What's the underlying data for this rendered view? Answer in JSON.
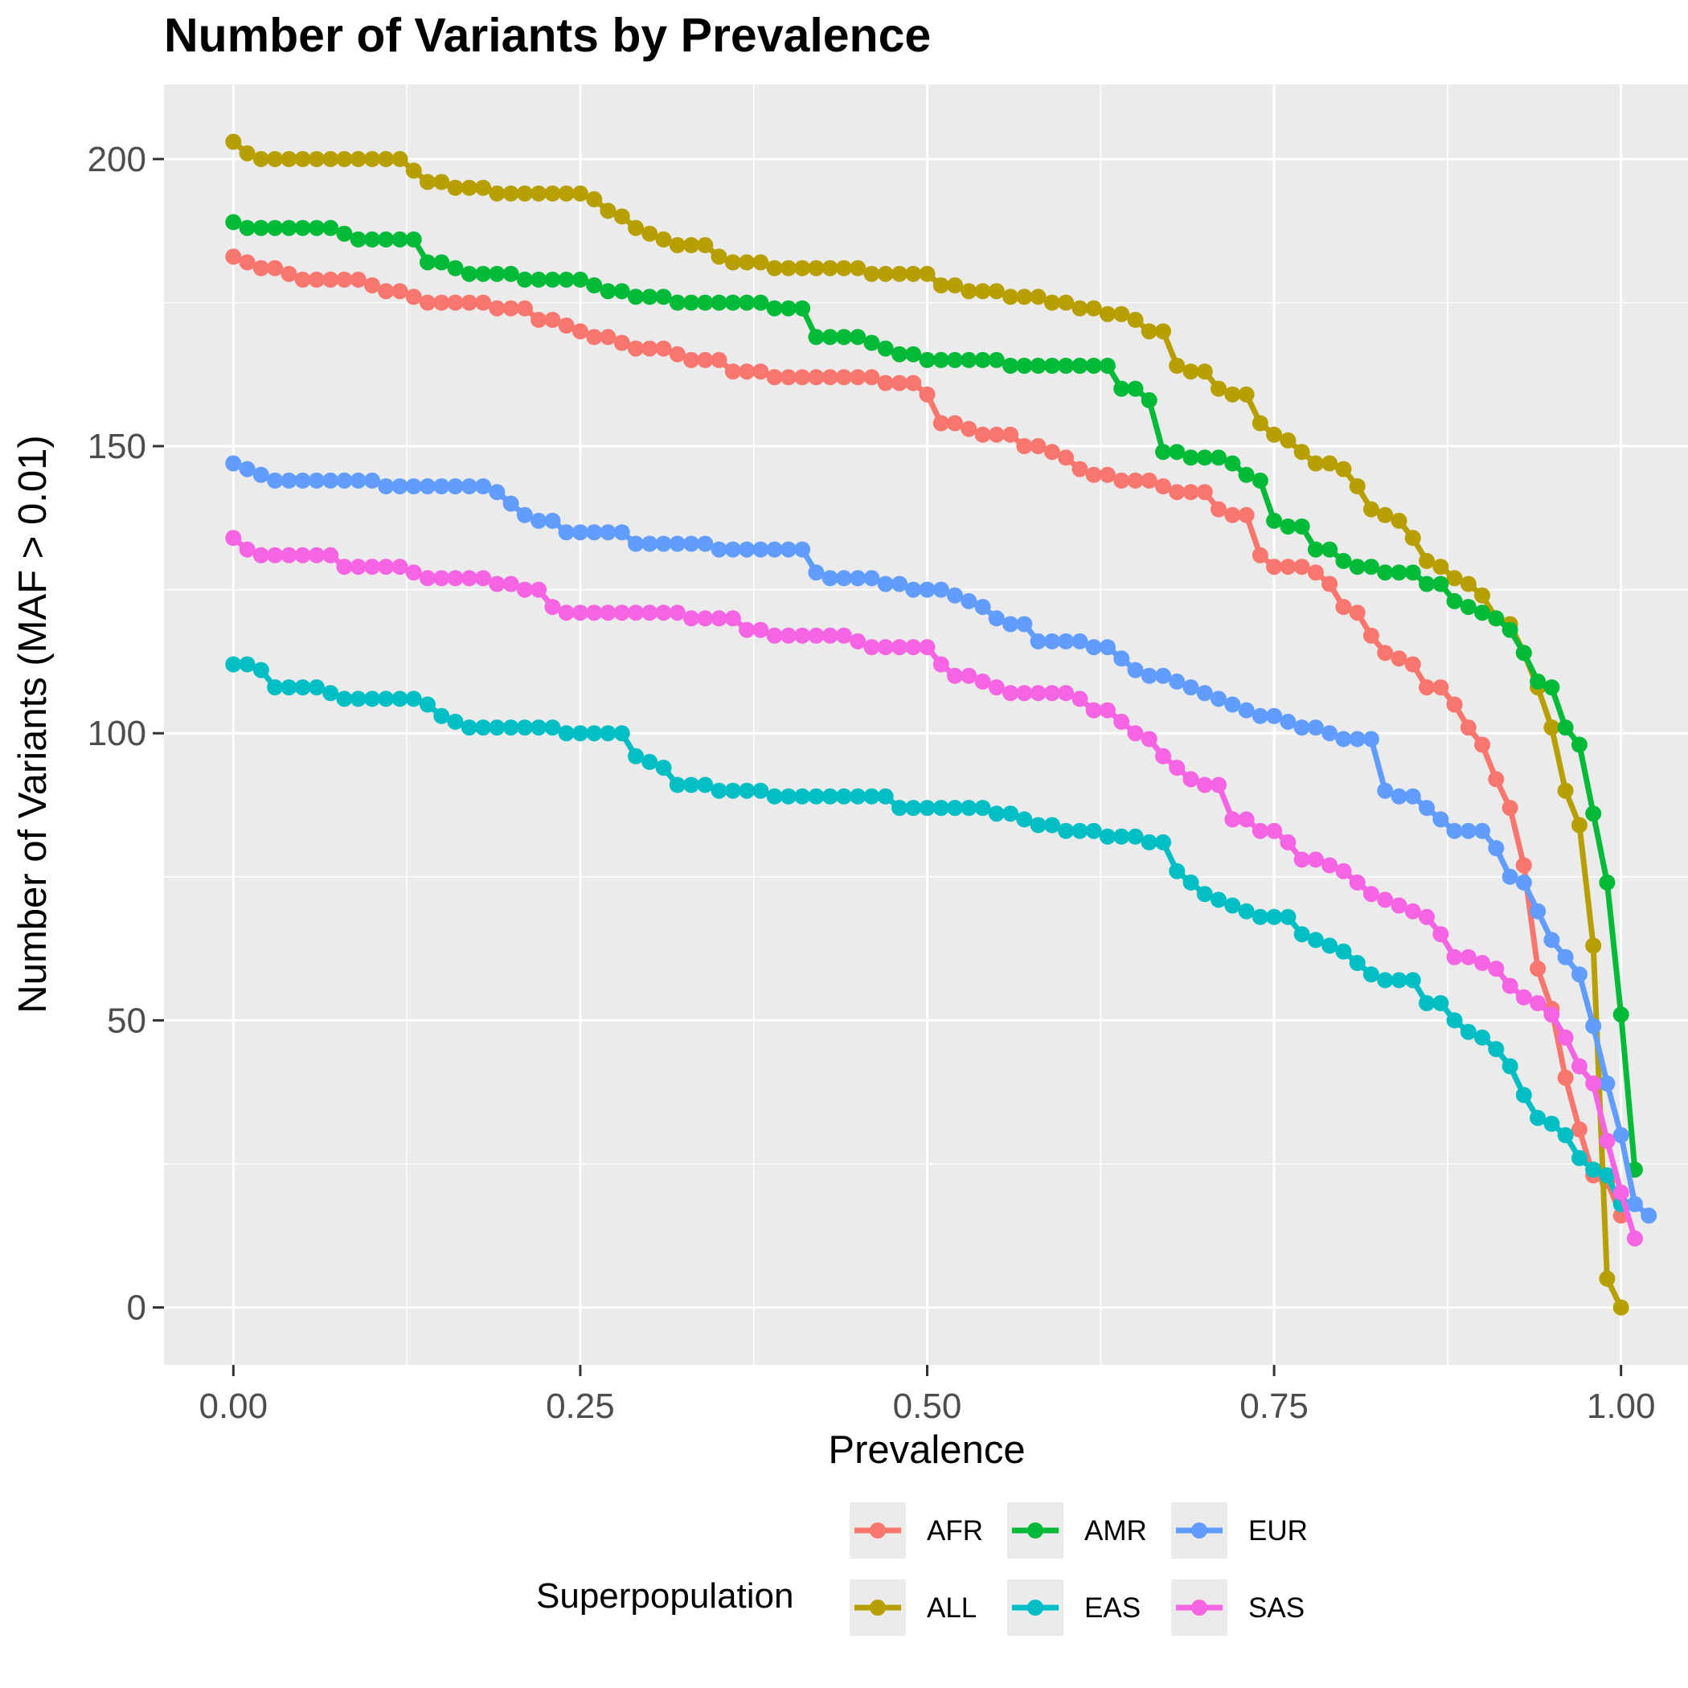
{
  "chart_data": {
    "type": "line",
    "title": "Number of Variants by Prevalence",
    "xlabel": "Prevalence",
    "ylabel": "Number of Variants (MAF > 0.01)",
    "xlim": [
      -0.05,
      1.05
    ],
    "ylim": [
      -10,
      213
    ],
    "x_ticks": [
      0,
      0.25,
      0.5,
      0.75,
      1
    ],
    "x_tick_labels": [
      "0.00",
      "0.25",
      "0.50",
      "0.75",
      "1.00"
    ],
    "y_ticks": [
      0,
      50,
      100,
      150,
      200
    ],
    "y_tick_labels": [
      "0",
      "50",
      "100",
      "150",
      "200"
    ],
    "grid": true,
    "panel_background": "#ebebeb",
    "markers": true,
    "x_step": 0.01,
    "legend": {
      "title": "Superpopulation",
      "position": "bottom",
      "entries": [
        "AFR",
        "ALL",
        "AMR",
        "EAS",
        "EUR",
        "SAS"
      ]
    },
    "series": [
      {
        "name": "AFR",
        "color": "#F8766D",
        "x_start": 0,
        "values": [
          183,
          182,
          181,
          181,
          180,
          179,
          179,
          179,
          179,
          179,
          178,
          177,
          177,
          176,
          175,
          175,
          175,
          175,
          175,
          174,
          174,
          174,
          172,
          172,
          171,
          170,
          169,
          169,
          168,
          167,
          167,
          167,
          166,
          165,
          165,
          165,
          163,
          163,
          163,
          162,
          162,
          162,
          162,
          162,
          162,
          162,
          162,
          161,
          161,
          161,
          159,
          154,
          154,
          153,
          152,
          152,
          152,
          150,
          150,
          149,
          148,
          146,
          145,
          145,
          144,
          144,
          144,
          143,
          142,
          142,
          142,
          139,
          138,
          138,
          131,
          129,
          129,
          129,
          128,
          126,
          122,
          121,
          117,
          114,
          113,
          112,
          108,
          108,
          105,
          101,
          98,
          92,
          87,
          77,
          59,
          52,
          40,
          31,
          23,
          22,
          16
        ]
      },
      {
        "name": "ALL",
        "color": "#B79F00",
        "x_start": 0,
        "values": [
          203,
          201,
          200,
          200,
          200,
          200,
          200,
          200,
          200,
          200,
          200,
          200,
          200,
          198,
          196,
          196,
          195,
          195,
          195,
          194,
          194,
          194,
          194,
          194,
          194,
          194,
          193,
          191,
          190,
          188,
          187,
          186,
          185,
          185,
          185,
          183,
          182,
          182,
          182,
          181,
          181,
          181,
          181,
          181,
          181,
          181,
          180,
          180,
          180,
          180,
          180,
          178,
          178,
          177,
          177,
          177,
          176,
          176,
          176,
          175,
          175,
          174,
          174,
          173,
          173,
          172,
          170,
          170,
          164,
          163,
          163,
          160,
          159,
          159,
          154,
          152,
          151,
          149,
          147,
          147,
          146,
          143,
          139,
          138,
          137,
          134,
          130,
          129,
          127,
          126,
          124,
          120,
          119,
          114,
          108,
          101,
          90,
          84,
          63,
          5,
          0
        ]
      },
      {
        "name": "AMR",
        "color": "#00BA38",
        "x_start": 0,
        "values": [
          189,
          188,
          188,
          188,
          188,
          188,
          188,
          188,
          187,
          186,
          186,
          186,
          186,
          186,
          182,
          182,
          181,
          180,
          180,
          180,
          180,
          179,
          179,
          179,
          179,
          179,
          178,
          177,
          177,
          176,
          176,
          176,
          175,
          175,
          175,
          175,
          175,
          175,
          175,
          174,
          174,
          174,
          169,
          169,
          169,
          169,
          168,
          167,
          166,
          166,
          165,
          165,
          165,
          165,
          165,
          165,
          164,
          164,
          164,
          164,
          164,
          164,
          164,
          164,
          160,
          160,
          158,
          149,
          149,
          148,
          148,
          148,
          147,
          145,
          144,
          137,
          136,
          136,
          132,
          132,
          130,
          129,
          129,
          128,
          128,
          128,
          126,
          126,
          123,
          122,
          121,
          120,
          118,
          114,
          109,
          108,
          101,
          98,
          86,
          74,
          51,
          24
        ]
      },
      {
        "name": "EAS",
        "color": "#00BFC4",
        "x_start": 0,
        "values": [
          112,
          112,
          111,
          108,
          108,
          108,
          108,
          107,
          106,
          106,
          106,
          106,
          106,
          106,
          105,
          103,
          102,
          101,
          101,
          101,
          101,
          101,
          101,
          101,
          100,
          100,
          100,
          100,
          100,
          96,
          95,
          94,
          91,
          91,
          91,
          90,
          90,
          90,
          90,
          89,
          89,
          89,
          89,
          89,
          89,
          89,
          89,
          89,
          87,
          87,
          87,
          87,
          87,
          87,
          87,
          86,
          86,
          85,
          84,
          84,
          83,
          83,
          83,
          82,
          82,
          82,
          81,
          81,
          76,
          74,
          72,
          71,
          70,
          69,
          68,
          68,
          68,
          65,
          64,
          63,
          62,
          60,
          58,
          57,
          57,
          57,
          53,
          53,
          50,
          48,
          47,
          45,
          42,
          37,
          33,
          32,
          30,
          26,
          24,
          23,
          18
        ]
      },
      {
        "name": "EUR",
        "color": "#619CFF",
        "x_start": 0,
        "values": [
          147,
          146,
          145,
          144,
          144,
          144,
          144,
          144,
          144,
          144,
          144,
          143,
          143,
          143,
          143,
          143,
          143,
          143,
          143,
          142,
          140,
          138,
          137,
          137,
          135,
          135,
          135,
          135,
          135,
          133,
          133,
          133,
          133,
          133,
          133,
          132,
          132,
          132,
          132,
          132,
          132,
          132,
          128,
          127,
          127,
          127,
          127,
          126,
          126,
          125,
          125,
          125,
          124,
          123,
          122,
          120,
          119,
          119,
          116,
          116,
          116,
          116,
          115,
          115,
          113,
          111,
          110,
          110,
          109,
          108,
          107,
          106,
          105,
          104,
          103,
          103,
          102,
          101,
          101,
          100,
          99,
          99,
          99,
          90,
          89,
          89,
          87,
          85,
          83,
          83,
          83,
          80,
          75,
          74,
          69,
          64,
          61,
          58,
          49,
          39,
          30,
          18,
          16
        ]
      },
      {
        "name": "SAS",
        "color": "#F564E3",
        "x_start": 0,
        "values": [
          134,
          132,
          131,
          131,
          131,
          131,
          131,
          131,
          129,
          129,
          129,
          129,
          129,
          128,
          127,
          127,
          127,
          127,
          127,
          126,
          126,
          125,
          125,
          122,
          121,
          121,
          121,
          121,
          121,
          121,
          121,
          121,
          121,
          120,
          120,
          120,
          120,
          118,
          118,
          117,
          117,
          117,
          117,
          117,
          117,
          116,
          115,
          115,
          115,
          115,
          115,
          112,
          110,
          110,
          109,
          108,
          107,
          107,
          107,
          107,
          107,
          106,
          104,
          104,
          102,
          100,
          99,
          96,
          94,
          92,
          91,
          91,
          85,
          85,
          83,
          83,
          81,
          78,
          78,
          77,
          76,
          74,
          72,
          71,
          70,
          69,
          68,
          65,
          61,
          61,
          60,
          59,
          56,
          54,
          53,
          51,
          47,
          42,
          39,
          29,
          20,
          12
        ]
      }
    ]
  }
}
